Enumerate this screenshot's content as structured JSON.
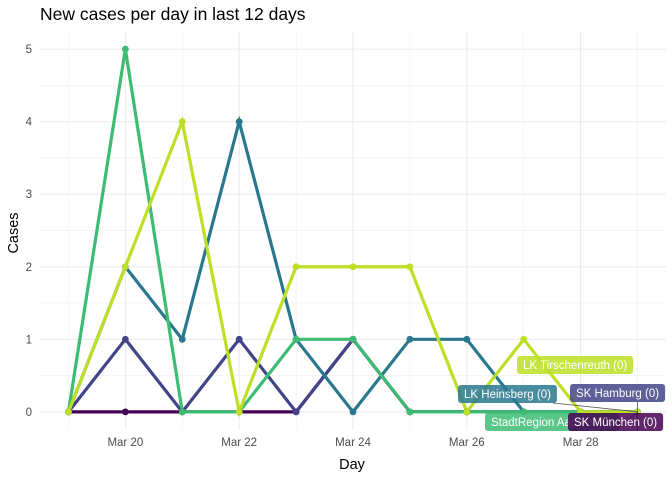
{
  "chart_data": {
    "type": "line",
    "title": "New cases per day in last 12 days",
    "xlabel": "Day",
    "ylabel": "Cases",
    "x": [
      "2020-03-19",
      "2020-03-20",
      "2020-03-21",
      "2020-03-22",
      "2020-03-23",
      "2020-03-24",
      "2020-03-25",
      "2020-03-26",
      "2020-03-27",
      "2020-03-28",
      "2020-03-29"
    ],
    "x_tick_labels": [
      {
        "date": "2020-03-20",
        "label": "Mar 20"
      },
      {
        "date": "2020-03-22",
        "label": "Mar 22"
      },
      {
        "date": "2020-03-24",
        "label": "Mar 24"
      },
      {
        "date": "2020-03-26",
        "label": "Mar 26"
      },
      {
        "date": "2020-03-28",
        "label": "Mar 28"
      }
    ],
    "y_ticks": [
      "0",
      "1",
      "2",
      "3",
      "4",
      "5"
    ],
    "ylim": [
      0,
      5
    ],
    "grid": true,
    "legend": "none",
    "series": [
      {
        "name": "SK München (0)",
        "color": "#440154",
        "values": [
          0,
          0,
          0,
          0,
          0,
          1,
          0,
          0,
          0,
          0,
          0
        ]
      },
      {
        "name": "SK Hamburg (0)",
        "color": "#414487",
        "values": [
          0,
          1,
          0,
          1,
          0,
          1,
          0,
          0,
          0,
          0,
          0
        ]
      },
      {
        "name": "LK Heinsberg (0)",
        "color": "#2a788e",
        "values": [
          0,
          2,
          1,
          4,
          1,
          0,
          1,
          1,
          0,
          0,
          0
        ]
      },
      {
        "name": "StadtRegion Aachen (0)",
        "color": "#3dbc74",
        "values": [
          0,
          5,
          0,
          0,
          1,
          1,
          0,
          0,
          0,
          0,
          0
        ]
      },
      {
        "name": "LK Tirschenreuth (0)",
        "color": "#bddf26",
        "values": [
          0,
          2,
          4,
          0,
          2,
          2,
          2,
          0,
          1,
          0,
          0
        ]
      }
    ],
    "end_labels": [
      {
        "series": 4,
        "text": "LK Tirschenreuth (0)"
      },
      {
        "series": 2,
        "text": "LK Heinsberg (0)"
      },
      {
        "series": 1,
        "text": "SK Hamburg (0)"
      },
      {
        "series": 3,
        "text": "StadtRegion Aachen (0)"
      },
      {
        "series": 0,
        "text": "SK München (0)"
      }
    ]
  }
}
